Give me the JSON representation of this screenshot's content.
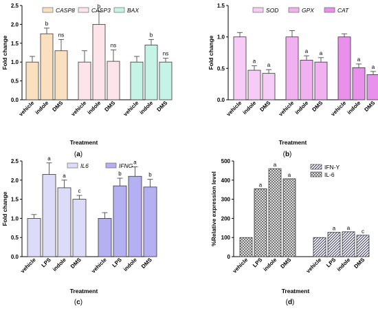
{
  "chart_data": [
    {
      "type": "bar",
      "panel_label": "a",
      "xlabel": "Treatment",
      "ylabel": "Fold change",
      "ylim": [
        0,
        2.5
      ],
      "yticks": [
        "0.0",
        "0.5",
        "1.0",
        "1.5",
        "2.0",
        "2.5"
      ],
      "legend_position": "top",
      "groups": [
        {
          "name": "CASP8",
          "color": "#fbe0c0",
          "categories": [
            "vehicle",
            "indole",
            "DMS"
          ],
          "values": [
            1.0,
            1.75,
            1.3
          ],
          "errors": [
            0.15,
            0.15,
            0.3
          ],
          "annotations": [
            "",
            "b",
            "ns"
          ]
        },
        {
          "name": "CASP3",
          "color": "#fde4ea",
          "categories": [
            "vehicle",
            "indole",
            "DMS"
          ],
          "values": [
            1.0,
            2.0,
            1.02
          ],
          "errors": [
            0.3,
            0.35,
            0.3
          ],
          "annotations": [
            "",
            "b",
            "ns"
          ]
        },
        {
          "name": "BAX",
          "color": "#c5f4e6",
          "categories": [
            "vehicle",
            "indole",
            "DMS"
          ],
          "values": [
            1.0,
            1.45,
            1.0
          ],
          "errors": [
            0.15,
            0.15,
            0.1
          ],
          "annotations": [
            "",
            "b",
            "ns"
          ]
        }
      ]
    },
    {
      "type": "bar",
      "panel_label": "b",
      "xlabel": "Treatment",
      "ylabel": "Fold change",
      "ylim": [
        0,
        1.5
      ],
      "yticks": [
        "0.0",
        "0.5",
        "1.0",
        "1.5"
      ],
      "legend_position": "top",
      "groups": [
        {
          "name": "SOD",
          "color": "#f6ccf6",
          "categories": [
            "vehicle",
            "indole",
            "DMS"
          ],
          "values": [
            1.0,
            0.47,
            0.42
          ],
          "errors": [
            0.07,
            0.07,
            0.06
          ],
          "annotations": [
            "",
            "a",
            "a"
          ]
        },
        {
          "name": "GPX",
          "color": "#f1b0f0",
          "categories": [
            "vehicle",
            "indole",
            "DMS"
          ],
          "values": [
            1.0,
            0.63,
            0.6
          ],
          "errors": [
            0.1,
            0.07,
            0.07
          ],
          "annotations": [
            "",
            "a",
            "a"
          ]
        },
        {
          "name": "CAT",
          "color": "#e990ec",
          "categories": [
            "vehicle",
            "indole",
            "DMS"
          ],
          "values": [
            1.0,
            0.51,
            0.4
          ],
          "errors": [
            0.05,
            0.06,
            0.05
          ],
          "annotations": [
            "",
            "a",
            "a"
          ]
        }
      ]
    },
    {
      "type": "bar",
      "panel_label": "c",
      "xlabel": "Treatment",
      "ylabel": "Fold change",
      "ylim": [
        0,
        2.5
      ],
      "yticks": [
        "0.0",
        "0.5",
        "1.0",
        "1.5",
        "2.0",
        "2.5"
      ],
      "legend_position": "top",
      "groups": [
        {
          "name": "IL6",
          "color": "#dcdcf8",
          "categories": [
            "vehicle",
            "LPS",
            "indole",
            "DMS"
          ],
          "values": [
            1.0,
            2.15,
            1.8,
            1.5
          ],
          "errors": [
            0.1,
            0.3,
            0.2,
            0.1
          ],
          "annotations": [
            "",
            "a",
            "a",
            "c"
          ]
        },
        {
          "name": "IFNG",
          "color": "#b4b0f2",
          "categories": [
            "vehicle",
            "LPS",
            "indole",
            "DMS"
          ],
          "values": [
            1.0,
            1.85,
            2.1,
            1.82
          ],
          "errors": [
            0.15,
            0.2,
            0.25,
            0.2
          ],
          "annotations": [
            "",
            "b",
            "a",
            "b"
          ]
        }
      ]
    },
    {
      "type": "bar",
      "panel_label": "d",
      "xlabel": "Treatment",
      "ylabel": "%Relative expression level",
      "ylim": [
        0,
        500
      ],
      "yticks": [
        "0",
        "100",
        "200",
        "300",
        "400",
        "500"
      ],
      "legend_position": "top-right",
      "groups": [
        {
          "name": "IL-6",
          "pattern": "grid",
          "categories": [
            "vehicle",
            "LPS",
            "indole",
            "DMS"
          ],
          "values": [
            100,
            355,
            460,
            407
          ],
          "annotations": [
            "",
            "a",
            "a",
            "a"
          ]
        },
        {
          "name": "IFN-Y",
          "pattern": "diagonal",
          "categories": [
            "vehicle",
            "LPS",
            "indole",
            "DMS"
          ],
          "values": [
            100,
            127,
            130,
            112
          ],
          "annotations": [
            "",
            "a",
            "a",
            "c"
          ]
        }
      ],
      "legend_order": [
        "IFN-Y",
        "IL-6"
      ]
    }
  ]
}
